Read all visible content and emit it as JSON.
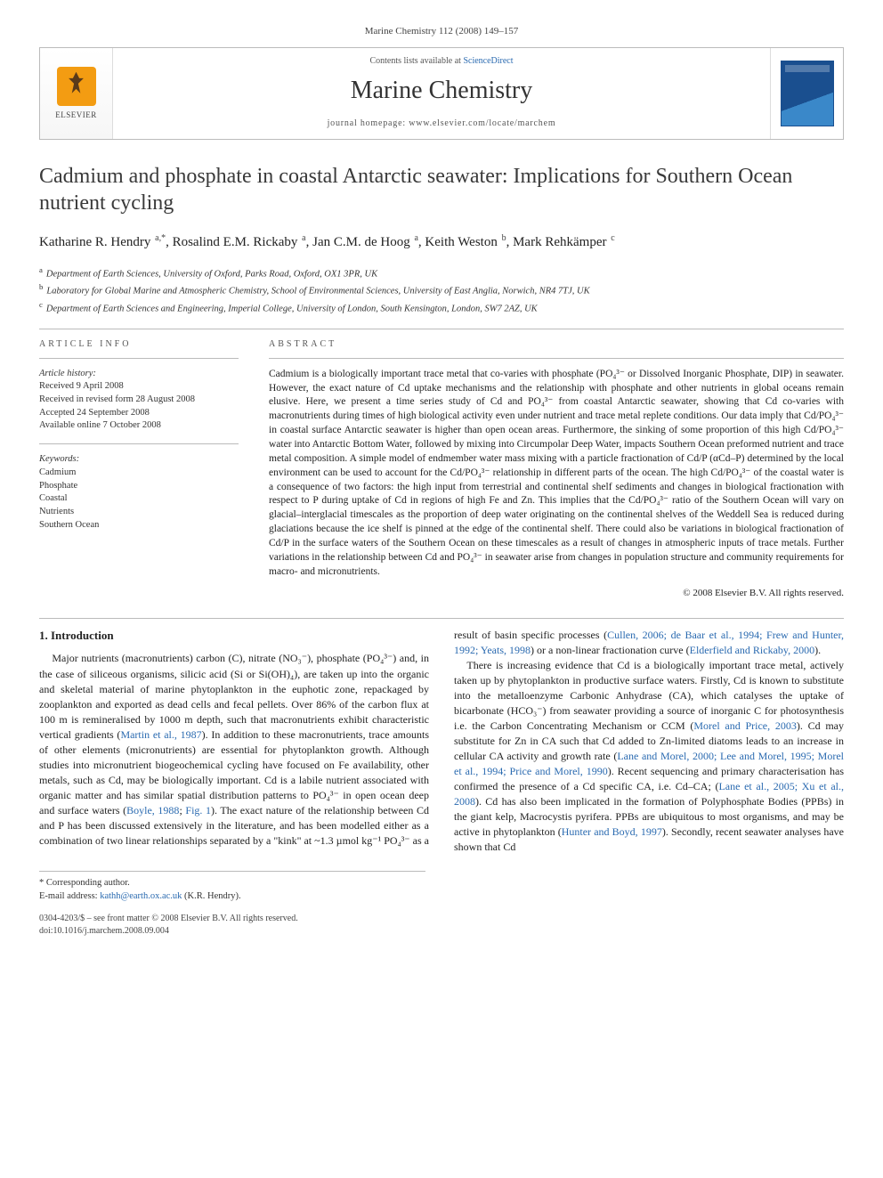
{
  "running_head": "Marine Chemistry 112 (2008) 149–157",
  "header": {
    "publisher_name": "ELSEVIER",
    "contents_line_pre": "Contents lists available at ",
    "contents_line_link": "ScienceDirect",
    "journal": "Marine Chemistry",
    "homepage_line": "journal homepage: www.elsevier.com/locate/marchem"
  },
  "title": "Cadmium and phosphate in coastal Antarctic seawater: Implications for Southern Ocean nutrient cycling",
  "authors_html": "Katharine R. Hendry <sup>a,*</sup>, Rosalind E.M. Rickaby <sup>a</sup>, Jan C.M. de Hoog <sup>a</sup>, Keith Weston <sup>b</sup>, Mark Rehkämper <sup>c</sup>",
  "affiliations": [
    {
      "sup": "a",
      "text": "Department of Earth Sciences, University of Oxford, Parks Road, Oxford, OX1 3PR, UK"
    },
    {
      "sup": "b",
      "text": "Laboratory for Global Marine and Atmospheric Chemistry, School of Environmental Sciences, University of East Anglia, Norwich, NR4 7TJ, UK"
    },
    {
      "sup": "c",
      "text": "Department of Earth Sciences and Engineering, Imperial College, University of London, South Kensington, London, SW7 2AZ, UK"
    }
  ],
  "article_info": {
    "heading": "ARTICLE INFO",
    "history_label": "Article history:",
    "history": [
      "Received 9 April 2008",
      "Received in revised form 28 August 2008",
      "Accepted 24 September 2008",
      "Available online 7 October 2008"
    ],
    "keywords_label": "Keywords:",
    "keywords": [
      "Cadmium",
      "Phosphate",
      "Coastal",
      "Nutrients",
      "Southern Ocean"
    ]
  },
  "abstract": {
    "heading": "ABSTRACT",
    "text": "Cadmium is a biologically important trace metal that co-varies with phosphate (PO₄³⁻ or Dissolved Inorganic Phosphate, DIP) in seawater. However, the exact nature of Cd uptake mechanisms and the relationship with phosphate and other nutrients in global oceans remain elusive. Here, we present a time series study of Cd and PO₄³⁻ from coastal Antarctic seawater, showing that Cd co-varies with macronutrients during times of high biological activity even under nutrient and trace metal replete conditions. Our data imply that Cd/PO₄³⁻ in coastal surface Antarctic seawater is higher than open ocean areas. Furthermore, the sinking of some proportion of this high Cd/PO₄³⁻ water into Antarctic Bottom Water, followed by mixing into Circumpolar Deep Water, impacts Southern Ocean preformed nutrient and trace metal composition. A simple model of endmember water mass mixing with a particle fractionation of Cd/P (αCd–P) determined by the local environment can be used to account for the Cd/PO₄³⁻ relationship in different parts of the ocean. The high Cd/PO₄³⁻ of the coastal water is a consequence of two factors: the high input from terrestrial and continental shelf sediments and changes in biological fractionation with respect to P during uptake of Cd in regions of high Fe and Zn. This implies that the Cd/PO₄³⁻ ratio of the Southern Ocean will vary on glacial–interglacial timescales as the proportion of deep water originating on the continental shelves of the Weddell Sea is reduced during glaciations because the ice shelf is pinned at the edge of the continental shelf. There could also be variations in biological fractionation of Cd/P in the surface waters of the Southern Ocean on these timescales as a result of changes in atmospheric inputs of trace metals. Further variations in the relationship between Cd and PO₄³⁻ in seawater arise from changes in population structure and community requirements for macro- and micronutrients.",
    "copyright": "© 2008 Elsevier B.V. All rights reserved."
  },
  "intro": {
    "heading": "1. Introduction",
    "p1": "Major nutrients (macronutrients) carbon (C), nitrate (NO₃⁻), phosphate (PO₄³⁻) and, in the case of siliceous organisms, silicic acid (Si or Si(OH)₄), are taken up into the organic and skeletal material of marine phytoplankton in the euphotic zone, repackaged by zooplankton and exported as dead cells and fecal pellets. Over 86% of the carbon flux at 100 m is remineralised by 1000 m depth, such that macronutrients exhibit characteristic vertical gradients (",
    "p1_ref1": "Martin et al., 1987",
    "p1_b": "). In addition to these macronutrients, trace amounts of other elements (micronutrients) are essential for phytoplankton growth. Although studies into micronutrient biogeochemical cycling have focused on Fe availability, other metals, such as Cd, may be biologically important. Cd is a labile nutrient associated with organic matter and has similar spatial distribution patterns to PO₄³⁻ in open ocean deep and surface waters (",
    "p1_ref2": "Boyle, 1988",
    "p1_c": "; ",
    "p1_ref3": "Fig. 1",
    "p1_d": "). The exact nature of the relationship between Cd and P has been discussed extensively in the ",
    "p2": "literature, and has been modelled either as a combination of two linear relationships separated by a \"kink\" at ~1.3 µmol kg⁻¹ PO₄³⁻ as a result of basin specific processes (",
    "p2_ref1": "Cullen, 2006; de Baar et al., 1994; Frew and Hunter, 1992; Yeats, 1998",
    "p2_b": ") or a non-linear fractionation curve (",
    "p2_ref2": "Elderfield and Rickaby, 2000",
    "p2_c": ").",
    "p3": "There is increasing evidence that Cd is a biologically important trace metal, actively taken up by phytoplankton in productive surface waters. Firstly, Cd is known to substitute into the metalloenzyme Carbonic Anhydrase (CA), which catalyses the uptake of bicarbonate (HCO₃⁻) from seawater providing a source of inorganic C for photosynthesis i.e. the Carbon Concentrating Mechanism or CCM (",
    "p3_ref1": "Morel and Price, 2003",
    "p3_b": "). Cd may substitute for Zn in CA such that Cd added to Zn-limited diatoms leads to an increase in cellular CA activity and growth rate (",
    "p3_ref2": "Lane and Morel, 2000; Lee and Morel, 1995; Morel et al., 1994; Price and Morel, 1990",
    "p3_c": "). Recent sequencing and primary characterisation has confirmed the presence of a Cd specific CA, i.e. Cd–CA; (",
    "p3_ref3": "Lane et al., 2005; Xu et al., 2008",
    "p3_d": "). Cd has also been implicated in the formation of Polyphosphate Bodies (PPBs) in the giant kelp, Macrocystis pyrifera. PPBs are ubiquitous to most organisms, and may be active in phytoplankton (",
    "p3_ref4": "Hunter and Boyd, 1997",
    "p3_e": "). Secondly, recent seawater analyses have shown that Cd"
  },
  "footnote": {
    "corr": "* Corresponding author.",
    "email_label": "E-mail address: ",
    "email": "kathh@earth.ox.ac.uk",
    "email_tail": " (K.R. Hendry)."
  },
  "page_foot": {
    "line1": "0304-4203/$ – see front matter © 2008 Elsevier B.V. All rights reserved.",
    "line2": "doi:10.1016/j.marchem.2008.09.004"
  },
  "colors": {
    "link": "#2a6ab0",
    "rule": "#bbbbbb",
    "text": "#222222",
    "heading": "#555555"
  }
}
